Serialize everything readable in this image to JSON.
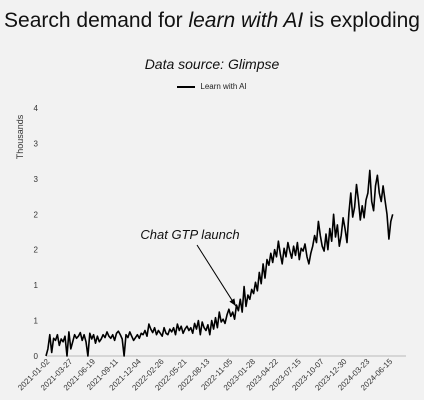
{
  "chart_data": {
    "type": "line",
    "title_prefix": "Search demand for ",
    "title_emph": "learn with AI",
    "title_suffix": " is exploding",
    "subtitle": "Data source: Glimpse",
    "ylabel": "Thousands",
    "legend_position": "top-center",
    "grid": false,
    "ylim": [
      0,
      3.5
    ],
    "yticks": [
      0,
      0.5,
      1,
      1.5,
      2,
      2.5,
      3,
      3.5
    ],
    "yticklabels": [
      "0",
      "1",
      "1",
      "2",
      "2",
      "3",
      "3",
      "4"
    ],
    "xlim": [
      "2021-01-02",
      "2024-08-17"
    ],
    "xticks": [
      "2021-01-02",
      "2021-03-27",
      "2021-06-19",
      "2021-09-11",
      "2021-12-04",
      "2022-02-26",
      "2022-05-21",
      "2022-08-13",
      "2022-11-05",
      "2023-01-28",
      "2023-04-22",
      "2023-07-15",
      "2023-10-07",
      "2023-12-30",
      "2024-03-23",
      "2024-06-15"
    ],
    "annotation": {
      "text": "Chat GTP launch",
      "date": "2022-11-30",
      "value": 0.65
    },
    "series": [
      {
        "name": "Learn with AI",
        "color": "#000000",
        "start": "2021-01-02",
        "step_days": 7,
        "values": [
          0.0,
          0.1,
          0.3,
          0.05,
          0.25,
          0.22,
          0.3,
          0.15,
          0.24,
          0.2,
          0.28,
          0.0,
          0.34,
          0.1,
          0.2,
          0.3,
          0.25,
          0.28,
          0.33,
          0.22,
          0.3,
          0.2,
          0.0,
          0.32,
          0.24,
          0.3,
          0.18,
          0.28,
          0.2,
          0.24,
          0.3,
          0.26,
          0.34,
          0.28,
          0.25,
          0.3,
          0.22,
          0.32,
          0.35,
          0.3,
          0.24,
          0.0,
          0.3,
          0.26,
          0.34,
          0.28,
          0.22,
          0.26,
          0.3,
          0.25,
          0.32,
          0.3,
          0.36,
          0.28,
          0.45,
          0.38,
          0.33,
          0.4,
          0.3,
          0.36,
          0.32,
          0.28,
          0.4,
          0.32,
          0.3,
          0.38,
          0.34,
          0.4,
          0.3,
          0.45,
          0.36,
          0.42,
          0.32,
          0.38,
          0.42,
          0.36,
          0.4,
          0.32,
          0.46,
          0.38,
          0.5,
          0.3,
          0.48,
          0.4,
          0.36,
          0.44,
          0.3,
          0.5,
          0.38,
          0.54,
          0.4,
          0.62,
          0.48,
          0.52,
          0.46,
          0.58,
          0.66,
          0.56,
          0.62,
          0.52,
          0.72,
          0.64,
          0.8,
          0.62,
          0.98,
          0.7,
          0.86,
          0.8,
          0.94,
          0.88,
          1.04,
          0.92,
          1.18,
          1.02,
          1.3,
          1.1,
          1.36,
          1.28,
          1.45,
          1.32,
          1.5,
          1.4,
          1.62,
          1.44,
          1.3,
          1.52,
          1.4,
          1.6,
          1.48,
          1.38,
          1.55,
          1.42,
          1.6,
          1.36,
          1.52,
          1.48,
          1.58,
          1.4,
          1.3,
          1.45,
          1.55,
          1.7,
          1.6,
          1.9,
          1.7,
          1.55,
          1.48,
          1.72,
          1.5,
          1.8,
          1.62,
          2.0,
          1.68,
          1.85,
          1.55,
          1.7,
          1.95,
          1.8,
          1.6,
          2.02,
          2.3,
          1.96,
          2.1,
          2.42,
          2.2,
          1.92,
          2.12,
          1.95,
          2.2,
          2.3,
          2.62,
          2.18,
          2.05,
          2.4,
          2.55,
          2.3,
          2.18,
          2.4,
          2.2,
          2.0,
          1.65,
          1.9,
          2.0
        ]
      }
    ]
  }
}
